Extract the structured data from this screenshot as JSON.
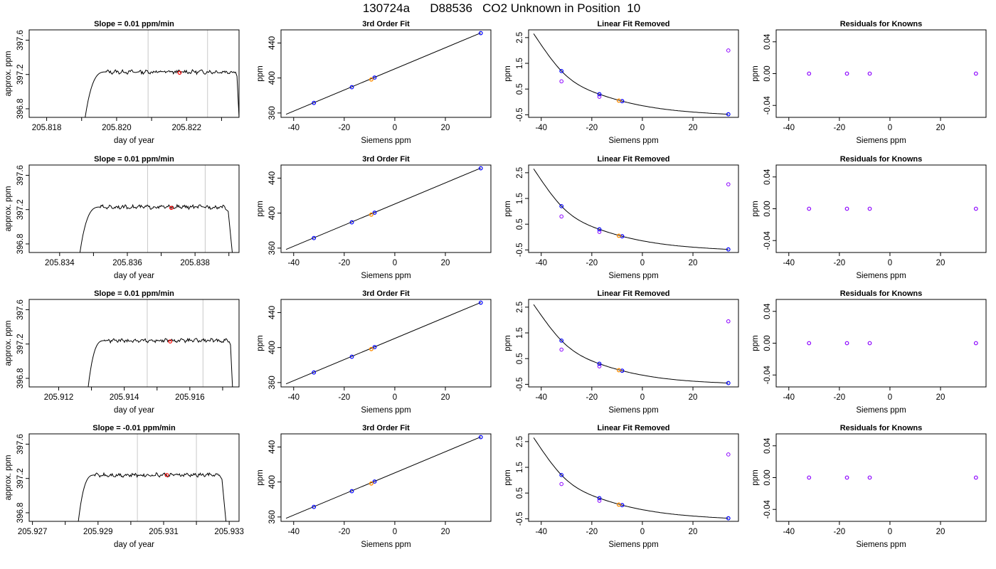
{
  "figure_title": "130724a      D88536   CO2 Unknown in Position  10",
  "colors": {
    "trace": "#000000",
    "interval_lines": "#c8c8c8",
    "mean_point": "#ff0000",
    "reference_points": "#0000ff",
    "unknown_point": "#ff8c00",
    "residual_points": "#8b00ff",
    "fit_curve": "#000000"
  },
  "chart_data": [
    {
      "type": "line",
      "row": 1,
      "col": 1,
      "title": "Slope =  0.01  ppm/min",
      "xlabel": "day of year",
      "ylabel": "approx. ppm",
      "xlim": [
        205.8175,
        205.8235
      ],
      "ylim": [
        396.7,
        397.72
      ],
      "xticks": [
        "205.818",
        "205.820",
        "205.822"
      ],
      "xtick_values": [
        205.818,
        205.82,
        205.822
      ],
      "minor_xticks": [
        205.819,
        205.821,
        205.823
      ],
      "yticks": [
        "396.8",
        "397.2",
        "397.6"
      ],
      "ytick_values": [
        396.8,
        397.2,
        397.6
      ],
      "vlines": [
        205.8209,
        205.8226
      ],
      "trace": {
        "x_start": 205.8191,
        "x_flat_start": 205.8197,
        "x_flat_end": 205.8234,
        "x_end": 205.8235,
        "plateau": 397.23,
        "y_low": 396.7
      },
      "mean_point": {
        "x": 205.8218,
        "y": 397.22
      }
    },
    {
      "type": "line",
      "row": 1,
      "col": 2,
      "title": "3rd Order Fit",
      "xlabel": "Siemens ppm",
      "ylabel": "ppm",
      "xlim": [
        -45,
        38
      ],
      "ylim": [
        355,
        455
      ],
      "xticks": [
        "-40",
        "-20",
        "0",
        "20"
      ],
      "xtick_values": [
        -40,
        -20,
        0,
        20
      ],
      "yticks": [
        "360",
        "400",
        "440"
      ],
      "ytick_values": [
        360,
        400,
        440
      ],
      "line": {
        "x": [
          -43,
          34
        ],
        "y": [
          358.5,
          451.5
        ]
      },
      "reference_points": [
        {
          "x": -32,
          "y": 371.5
        },
        {
          "x": -17,
          "y": 389.5
        },
        {
          "x": -8,
          "y": 400.5
        },
        {
          "x": 34,
          "y": 451.3
        }
      ],
      "unknown_point": {
        "x": -9.3,
        "y": 398.3
      }
    },
    {
      "type": "line",
      "row": 1,
      "col": 3,
      "title": "Linear Fit Removed",
      "xlabel": "Siemens ppm",
      "ylabel": "ppm",
      "xlim": [
        -45,
        38
      ],
      "ylim": [
        -0.6,
        2.8
      ],
      "xticks": [
        "-40",
        "-20",
        "0",
        "20"
      ],
      "xtick_values": [
        -40,
        -20,
        0,
        20
      ],
      "yticks": [
        "-0.5",
        "0.5",
        "1.5",
        "2.5"
      ],
      "ytick_values": [
        -0.5,
        0.5,
        1.5,
        2.5
      ],
      "curve": {
        "x_from": -43,
        "x_to": 34,
        "knots": [
          [
            -43,
            2.65
          ],
          [
            -32,
            1.2
          ],
          [
            -17,
            0.3
          ],
          [
            -8,
            0.03
          ],
          [
            34,
            -0.48
          ]
        ]
      },
      "reference_points": [
        {
          "x": -32,
          "y": 1.2
        },
        {
          "x": -17,
          "y": 0.3
        },
        {
          "x": -8,
          "y": 0.03
        },
        {
          "x": 34,
          "y": -0.48
        }
      ],
      "unknown_point": {
        "x": -9.3,
        "y": 0.05
      },
      "residual_points": [
        {
          "x": -32,
          "y": 0.8
        },
        {
          "x": -17,
          "y": 0.2
        },
        {
          "x": -8,
          "y": 0.03
        },
        {
          "x": 34,
          "y": 2.0
        }
      ]
    },
    {
      "type": "scatter",
      "row": 1,
      "col": 4,
      "title": "Residuals for Knowns",
      "xlabel": "Siemens ppm",
      "ylabel": "ppm",
      "xlim": [
        -45,
        38
      ],
      "ylim": [
        -0.055,
        0.055
      ],
      "xticks": [
        "-40",
        "-20",
        "0",
        "20"
      ],
      "xtick_values": [
        -40,
        -20,
        0,
        20
      ],
      "yticks": [
        "-0.04",
        "0.00",
        "0.04"
      ],
      "ytick_values": [
        -0.04,
        0,
        0.04
      ],
      "points": [
        {
          "x": -32,
          "y": 0
        },
        {
          "x": -17,
          "y": 0
        },
        {
          "x": -8,
          "y": 0
        },
        {
          "x": 34,
          "y": 0
        }
      ]
    },
    {
      "type": "line",
      "row": 2,
      "col": 1,
      "title": "Slope =  0.01  ppm/min",
      "xlabel": "day of year",
      "ylabel": "approx. ppm",
      "xlim": [
        205.8331,
        205.8393
      ],
      "ylim": [
        396.7,
        397.72
      ],
      "xticks": [
        "205.834",
        "205.836",
        "205.838"
      ],
      "xtick_values": [
        205.834,
        205.836,
        205.838
      ],
      "minor_xticks": [
        205.835,
        205.837,
        205.839
      ],
      "yticks": [
        "396.8",
        "397.2",
        "397.6"
      ],
      "ytick_values": [
        396.8,
        397.2,
        397.6
      ],
      "vlines": [
        205.8366,
        205.8383
      ],
      "trace": {
        "x_start": 205.8346,
        "x_flat_start": 205.8352,
        "x_flat_end": 205.8389,
        "x_end": 205.8391,
        "plateau": 397.23,
        "y_low": 396.7
      },
      "mean_point": {
        "x": 205.8373,
        "y": 397.22
      }
    },
    {
      "type": "line",
      "row": 2,
      "col": 2,
      "title": "3rd Order Fit",
      "xlabel": "Siemens ppm",
      "ylabel": "ppm",
      "xlim": [
        -45,
        38
      ],
      "ylim": [
        355,
        455
      ],
      "xticks": [
        "-40",
        "-20",
        "0",
        "20"
      ],
      "xtick_values": [
        -40,
        -20,
        0,
        20
      ],
      "yticks": [
        "360",
        "400",
        "440"
      ],
      "ytick_values": [
        360,
        400,
        440
      ],
      "line": {
        "x": [
          -43,
          34
        ],
        "y": [
          358.5,
          451.5
        ]
      },
      "reference_points": [
        {
          "x": -32,
          "y": 371.5
        },
        {
          "x": -17,
          "y": 389.5
        },
        {
          "x": -8,
          "y": 400.5
        },
        {
          "x": 34,
          "y": 451.3
        }
      ],
      "unknown_point": {
        "x": -9.3,
        "y": 398.3
      }
    },
    {
      "type": "line",
      "row": 2,
      "col": 3,
      "title": "Linear Fit Removed",
      "xlabel": "Siemens ppm",
      "ylabel": "ppm",
      "xlim": [
        -45,
        38
      ],
      "ylim": [
        -0.6,
        2.8
      ],
      "xticks": [
        "-40",
        "-20",
        "0",
        "20"
      ],
      "xtick_values": [
        -40,
        -20,
        0,
        20
      ],
      "yticks": [
        "-0.5",
        "0.5",
        "1.5",
        "2.5"
      ],
      "ytick_values": [
        -0.5,
        0.5,
        1.5,
        2.5
      ],
      "curve": {
        "x_from": -43,
        "x_to": 34,
        "knots": [
          [
            -43,
            2.65
          ],
          [
            -32,
            1.2
          ],
          [
            -17,
            0.3
          ],
          [
            -8,
            0.03
          ],
          [
            34,
            -0.48
          ]
        ]
      },
      "reference_points": [
        {
          "x": -32,
          "y": 1.2
        },
        {
          "x": -17,
          "y": 0.3
        },
        {
          "x": -8,
          "y": 0.03
        },
        {
          "x": 34,
          "y": -0.48
        }
      ],
      "unknown_point": {
        "x": -9.3,
        "y": 0.05
      },
      "residual_points": [
        {
          "x": -32,
          "y": 0.8
        },
        {
          "x": -17,
          "y": 0.2
        },
        {
          "x": -8,
          "y": 0.03
        },
        {
          "x": 34,
          "y": 2.05
        }
      ]
    },
    {
      "type": "scatter",
      "row": 2,
      "col": 4,
      "title": "Residuals for Knowns",
      "xlabel": "Siemens ppm",
      "ylabel": "ppm",
      "xlim": [
        -45,
        38
      ],
      "ylim": [
        -0.055,
        0.055
      ],
      "xticks": [
        "-40",
        "-20",
        "0",
        "20"
      ],
      "xtick_values": [
        -40,
        -20,
        0,
        20
      ],
      "yticks": [
        "-0.04",
        "0.00",
        "0.04"
      ],
      "ytick_values": [
        -0.04,
        0,
        0.04
      ],
      "points": [
        {
          "x": -32,
          "y": 0
        },
        {
          "x": -17,
          "y": 0
        },
        {
          "x": -8,
          "y": 0
        },
        {
          "x": 34,
          "y": 0
        }
      ]
    },
    {
      "type": "line",
      "row": 3,
      "col": 1,
      "title": "Slope =  0.01  ppm/min",
      "xlabel": "day of year",
      "ylabel": "approx. ppm",
      "xlim": [
        205.9111,
        205.9175
      ],
      "ylim": [
        396.7,
        397.72
      ],
      "xticks": [
        "205.912",
        "205.914",
        "205.916"
      ],
      "xtick_values": [
        205.912,
        205.914,
        205.916
      ],
      "minor_xticks": [
        205.913,
        205.915,
        205.917
      ],
      "yticks": [
        "396.8",
        "397.2",
        "397.6"
      ],
      "ytick_values": [
        396.8,
        397.2,
        397.6
      ],
      "vlines": [
        205.9147,
        205.9164
      ],
      "trace": {
        "x_start": 205.9129,
        "x_flat_start": 205.9134,
        "x_flat_end": 205.9172,
        "x_end": 205.9173,
        "plateau": 397.24,
        "y_low": 396.7
      },
      "mean_point": {
        "x": 205.9154,
        "y": 397.23
      }
    },
    {
      "type": "line",
      "row": 3,
      "col": 2,
      "title": "3rd Order Fit",
      "xlabel": "Siemens ppm",
      "ylabel": "ppm",
      "xlim": [
        -45,
        38
      ],
      "ylim": [
        355,
        455
      ],
      "xticks": [
        "-40",
        "-20",
        "0",
        "20"
      ],
      "xtick_values": [
        -40,
        -20,
        0,
        20
      ],
      "yticks": [
        "360",
        "400",
        "440"
      ],
      "ytick_values": [
        360,
        400,
        440
      ],
      "line": {
        "x": [
          -43,
          34
        ],
        "y": [
          358.5,
          451.5
        ]
      },
      "reference_points": [
        {
          "x": -32,
          "y": 371.5
        },
        {
          "x": -17,
          "y": 389.5
        },
        {
          "x": -8,
          "y": 400.5
        },
        {
          "x": 34,
          "y": 451.3
        }
      ],
      "unknown_point": {
        "x": -9.3,
        "y": 398.3
      }
    },
    {
      "type": "line",
      "row": 3,
      "col": 3,
      "title": "Linear Fit Removed",
      "xlabel": "Siemens ppm",
      "ylabel": "ppm",
      "xlim": [
        -45,
        38
      ],
      "ylim": [
        -0.6,
        2.8
      ],
      "xticks": [
        "-40",
        "-20",
        "0",
        "20"
      ],
      "xtick_values": [
        -40,
        -20,
        0,
        20
      ],
      "yticks": [
        "-0.5",
        "0.5",
        "1.5",
        "2.5"
      ],
      "ytick_values": [
        -0.5,
        0.5,
        1.5,
        2.5
      ],
      "curve": {
        "x_from": -43,
        "x_to": 34,
        "knots": [
          [
            -43,
            2.6
          ],
          [
            -32,
            1.2
          ],
          [
            -17,
            0.3
          ],
          [
            -8,
            0.03
          ],
          [
            34,
            -0.45
          ]
        ]
      },
      "reference_points": [
        {
          "x": -32,
          "y": 1.2
        },
        {
          "x": -17,
          "y": 0.3
        },
        {
          "x": -8,
          "y": 0.03
        },
        {
          "x": 34,
          "y": -0.45
        }
      ],
      "unknown_point": {
        "x": -9.3,
        "y": 0.05
      },
      "residual_points": [
        {
          "x": -32,
          "y": 0.85
        },
        {
          "x": -17,
          "y": 0.2
        },
        {
          "x": -8,
          "y": 0.03
        },
        {
          "x": 34,
          "y": 1.95
        }
      ]
    },
    {
      "type": "scatter",
      "row": 3,
      "col": 4,
      "title": "Residuals for Knowns",
      "xlabel": "Siemens ppm",
      "ylabel": "ppm",
      "xlim": [
        -45,
        38
      ],
      "ylim": [
        -0.055,
        0.055
      ],
      "xticks": [
        "-40",
        "-20",
        "0",
        "20"
      ],
      "xtick_values": [
        -40,
        -20,
        0,
        20
      ],
      "yticks": [
        "-0.04",
        "0.00",
        "0.04"
      ],
      "ytick_values": [
        -0.04,
        0,
        0.04
      ],
      "points": [
        {
          "x": -32,
          "y": 0
        },
        {
          "x": -17,
          "y": 0
        },
        {
          "x": -8,
          "y": 0
        },
        {
          "x": 34,
          "y": 0
        }
      ]
    },
    {
      "type": "line",
      "row": 4,
      "col": 1,
      "title": "Slope =  -0.01  ppm/min",
      "xlabel": "day of year",
      "ylabel": "approx. ppm",
      "xlim": [
        205.9269,
        205.9333
      ],
      "ylim": [
        396.7,
        397.72
      ],
      "xticks": [
        "205.927",
        "205.929",
        "205.931",
        "205.933"
      ],
      "xtick_values": [
        205.927,
        205.929,
        205.931,
        205.933
      ],
      "minor_xticks": [
        205.928,
        205.93,
        205.932
      ],
      "yticks": [
        "396.8",
        "397.2",
        "397.6"
      ],
      "ytick_values": [
        396.8,
        397.2,
        397.6
      ],
      "vlines": [
        205.9302,
        205.932
      ],
      "trace": {
        "x_start": 205.9284,
        "x_flat_start": 205.9289,
        "x_flat_end": 205.9327,
        "x_end": 205.9329,
        "plateau": 397.24,
        "y_low": 396.7
      },
      "mean_point": {
        "x": 205.9311,
        "y": 397.24
      }
    },
    {
      "type": "line",
      "row": 4,
      "col": 2,
      "title": "3rd Order Fit",
      "xlabel": "Siemens ppm",
      "ylabel": "ppm",
      "xlim": [
        -45,
        38
      ],
      "ylim": [
        355,
        455
      ],
      "xticks": [
        "-40",
        "-20",
        "0",
        "20"
      ],
      "xtick_values": [
        -40,
        -20,
        0,
        20
      ],
      "yticks": [
        "360",
        "400",
        "440"
      ],
      "ytick_values": [
        360,
        400,
        440
      ],
      "line": {
        "x": [
          -43,
          34
        ],
        "y": [
          358.5,
          451.5
        ]
      },
      "reference_points": [
        {
          "x": -32,
          "y": 371.5
        },
        {
          "x": -17,
          "y": 389.5
        },
        {
          "x": -8,
          "y": 400.5
        },
        {
          "x": 34,
          "y": 451.3
        }
      ],
      "unknown_point": {
        "x": -9.3,
        "y": 398.3
      }
    },
    {
      "type": "line",
      "row": 4,
      "col": 3,
      "title": "Linear Fit Removed",
      "xlabel": "Siemens ppm",
      "ylabel": "ppm",
      "xlim": [
        -45,
        38
      ],
      "ylim": [
        -0.6,
        2.8
      ],
      "xticks": [
        "-40",
        "-20",
        "0",
        "20"
      ],
      "xtick_values": [
        -40,
        -20,
        0,
        20
      ],
      "yticks": [
        "-0.5",
        "0.5",
        "1.5",
        "2.5"
      ],
      "ytick_values": [
        -0.5,
        0.5,
        1.5,
        2.5
      ],
      "curve": {
        "x_from": -43,
        "x_to": 34,
        "knots": [
          [
            -43,
            2.65
          ],
          [
            -32,
            1.2
          ],
          [
            -17,
            0.3
          ],
          [
            -8,
            0.03
          ],
          [
            34,
            -0.48
          ]
        ]
      },
      "reference_points": [
        {
          "x": -32,
          "y": 1.2
        },
        {
          "x": -17,
          "y": 0.3
        },
        {
          "x": -8,
          "y": 0.03
        },
        {
          "x": 34,
          "y": -0.48
        }
      ],
      "unknown_point": {
        "x": -9.3,
        "y": 0.05
      },
      "residual_points": [
        {
          "x": -32,
          "y": 0.85
        },
        {
          "x": -17,
          "y": 0.2
        },
        {
          "x": -8,
          "y": 0.03
        },
        {
          "x": 34,
          "y": 2.0
        }
      ]
    },
    {
      "type": "scatter",
      "row": 4,
      "col": 4,
      "title": "Residuals for Knowns",
      "xlabel": "Siemens ppm",
      "ylabel": "ppm",
      "xlim": [
        -45,
        38
      ],
      "ylim": [
        -0.055,
        0.055
      ],
      "xticks": [
        "-40",
        "-20",
        "0",
        "20"
      ],
      "xtick_values": [
        -40,
        -20,
        0,
        20
      ],
      "yticks": [
        "-0.04",
        "0.00",
        "0.04"
      ],
      "ytick_values": [
        -0.04,
        0,
        0.04
      ],
      "points": [
        {
          "x": -32,
          "y": 0
        },
        {
          "x": -17,
          "y": 0
        },
        {
          "x": -8,
          "y": 0
        },
        {
          "x": 34,
          "y": 0
        }
      ]
    }
  ]
}
